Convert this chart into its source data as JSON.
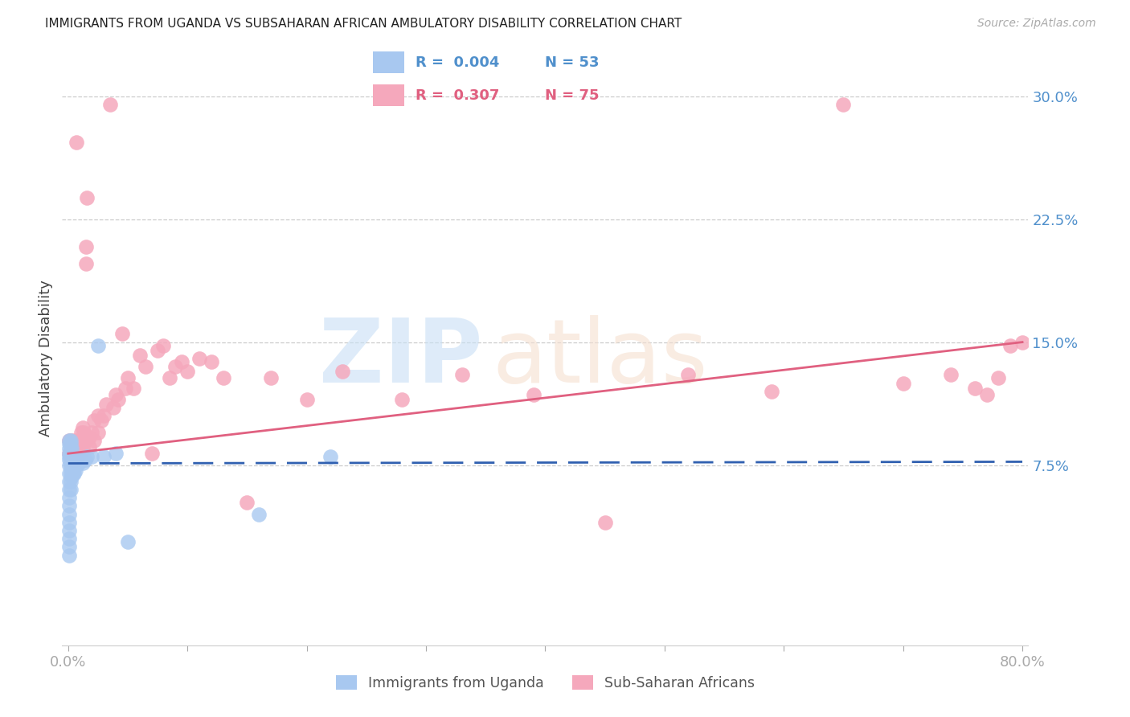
{
  "title": "IMMIGRANTS FROM UGANDA VS SUBSAHARAN AFRICAN AMBULATORY DISABILITY CORRELATION CHART",
  "source": "Source: ZipAtlas.com",
  "ylabel": "Ambulatory Disability",
  "color_uganda": "#a8c8f0",
  "color_subsaharan": "#f5a8bc",
  "color_uganda_line": "#3060b0",
  "color_subsaharan_line": "#e06080",
  "color_axis_ticks": "#5090cc",
  "background_color": "#ffffff",
  "legend_r1": "0.004",
  "legend_n1": "53",
  "legend_r2": "0.307",
  "legend_n2": "75",
  "xmin": 0.0,
  "xmax": 0.8,
  "ymin": -0.035,
  "ymax": 0.315,
  "yticks": [
    0.075,
    0.15,
    0.225,
    0.3
  ],
  "xtick_positions": [
    0.0,
    0.1,
    0.2,
    0.3,
    0.4,
    0.5,
    0.6,
    0.7,
    0.8
  ],
  "xtick_labels": [
    "0.0%",
    "",
    "",
    "",
    "",
    "",
    "",
    "",
    "80.0%"
  ],
  "uganda_line_y0": 0.076,
  "uganda_line_y1": 0.077,
  "subsaharan_line_y0": 0.082,
  "subsaharan_line_y1": 0.15,
  "uganda_x": [
    0.001,
    0.001,
    0.001,
    0.001,
    0.001,
    0.001,
    0.001,
    0.001,
    0.001,
    0.001,
    0.001,
    0.001,
    0.001,
    0.001,
    0.001,
    0.001,
    0.001,
    0.001,
    0.002,
    0.002,
    0.002,
    0.002,
    0.002,
    0.002,
    0.002,
    0.002,
    0.002,
    0.003,
    0.003,
    0.003,
    0.003,
    0.003,
    0.004,
    0.004,
    0.004,
    0.005,
    0.005,
    0.006,
    0.006,
    0.007,
    0.008,
    0.009,
    0.01,
    0.012,
    0.014,
    0.016,
    0.02,
    0.025,
    0.03,
    0.04,
    0.05,
    0.16,
    0.22
  ],
  "uganda_y": [
    0.06,
    0.065,
    0.07,
    0.075,
    0.078,
    0.08,
    0.082,
    0.085,
    0.088,
    0.09,
    0.055,
    0.05,
    0.045,
    0.04,
    0.035,
    0.03,
    0.025,
    0.02,
    0.06,
    0.065,
    0.07,
    0.075,
    0.078,
    0.08,
    0.085,
    0.088,
    0.09,
    0.068,
    0.072,
    0.075,
    0.08,
    0.085,
    0.07,
    0.075,
    0.08,
    0.07,
    0.075,
    0.072,
    0.078,
    0.075,
    0.078,
    0.076,
    0.078,
    0.076,
    0.078,
    0.08,
    0.08,
    0.148,
    0.08,
    0.082,
    0.028,
    0.045,
    0.08
  ],
  "subsaharan_x": [
    0.001,
    0.001,
    0.002,
    0.002,
    0.003,
    0.003,
    0.004,
    0.004,
    0.005,
    0.005,
    0.006,
    0.006,
    0.007,
    0.007,
    0.008,
    0.008,
    0.009,
    0.01,
    0.01,
    0.011,
    0.012,
    0.012,
    0.013,
    0.014,
    0.015,
    0.015,
    0.016,
    0.018,
    0.018,
    0.02,
    0.022,
    0.022,
    0.025,
    0.025,
    0.028,
    0.03,
    0.032,
    0.035,
    0.038,
    0.04,
    0.042,
    0.045,
    0.048,
    0.05,
    0.055,
    0.06,
    0.065,
    0.07,
    0.075,
    0.08,
    0.085,
    0.09,
    0.095,
    0.1,
    0.11,
    0.12,
    0.13,
    0.15,
    0.17,
    0.2,
    0.23,
    0.28,
    0.33,
    0.39,
    0.45,
    0.52,
    0.59,
    0.65,
    0.7,
    0.74,
    0.76,
    0.77,
    0.78,
    0.79,
    0.8
  ],
  "subsaharan_y": [
    0.082,
    0.09,
    0.08,
    0.09,
    0.082,
    0.088,
    0.078,
    0.086,
    0.08,
    0.09,
    0.078,
    0.086,
    0.272,
    0.082,
    0.08,
    0.088,
    0.085,
    0.082,
    0.09,
    0.095,
    0.085,
    0.098,
    0.095,
    0.09,
    0.198,
    0.208,
    0.238,
    0.086,
    0.092,
    0.095,
    0.09,
    0.102,
    0.095,
    0.105,
    0.102,
    0.105,
    0.112,
    0.295,
    0.11,
    0.118,
    0.115,
    0.155,
    0.122,
    0.128,
    0.122,
    0.142,
    0.135,
    0.082,
    0.145,
    0.148,
    0.128,
    0.135,
    0.138,
    0.132,
    0.14,
    0.138,
    0.128,
    0.052,
    0.128,
    0.115,
    0.132,
    0.115,
    0.13,
    0.118,
    0.04,
    0.13,
    0.12,
    0.295,
    0.125,
    0.13,
    0.122,
    0.118,
    0.128,
    0.148,
    0.15
  ]
}
